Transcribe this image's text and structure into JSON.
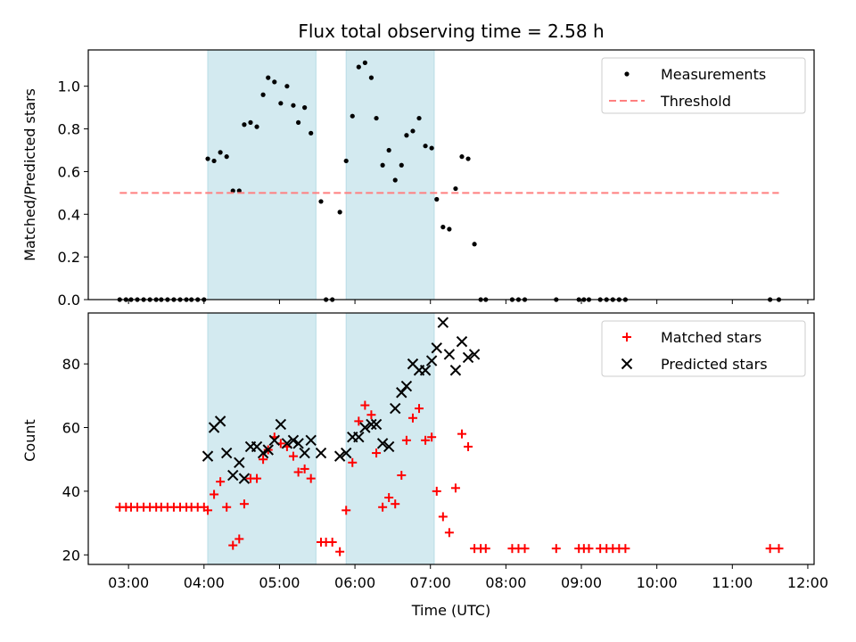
{
  "chart_data": [
    {
      "type": "scatter",
      "title": "Flux total observing time = 2.58 h",
      "xlabel": "",
      "ylabel": "Matched/Predicted stars",
      "xlim": [
        "02:28",
        "12:05"
      ],
      "ylim": [
        0,
        1.17
      ],
      "y_ticks": [
        0.0,
        0.2,
        0.4,
        0.6,
        0.8,
        1.0
      ],
      "y_tick_labels": [
        "0.0",
        "0.2",
        "0.4",
        "0.6",
        "0.8",
        "1.0"
      ],
      "shaded_intervals": [
        [
          "04:03",
          "05:29"
        ],
        [
          "05:53",
          "07:03"
        ]
      ],
      "shade_color": "#d3eaf0",
      "legend_position": "top-right",
      "series": [
        {
          "name": "Measurements",
          "marker": "dot",
          "color": "#000000",
          "points": [
            [
              "02:53",
              0.0
            ],
            [
              "02:58",
              0.0
            ],
            [
              "03:02",
              0.0
            ],
            [
              "03:07",
              0.0
            ],
            [
              "03:12",
              0.0
            ],
            [
              "03:17",
              0.0
            ],
            [
              "03:22",
              0.0
            ],
            [
              "03:26",
              0.0
            ],
            [
              "03:31",
              0.0
            ],
            [
              "03:36",
              0.0
            ],
            [
              "03:41",
              0.0
            ],
            [
              "03:46",
              0.0
            ],
            [
              "03:50",
              0.0
            ],
            [
              "03:55",
              0.0
            ],
            [
              "04:00",
              0.0
            ],
            [
              "04:03",
              0.66
            ],
            [
              "04:08",
              0.65
            ],
            [
              "04:13",
              0.69
            ],
            [
              "04:18",
              0.67
            ],
            [
              "04:23",
              0.51
            ],
            [
              "04:28",
              0.51
            ],
            [
              "04:32",
              0.82
            ],
            [
              "04:37",
              0.83
            ],
            [
              "04:42",
              0.81
            ],
            [
              "04:47",
              0.96
            ],
            [
              "04:51",
              1.04
            ],
            [
              "04:56",
              1.02
            ],
            [
              "05:01",
              0.92
            ],
            [
              "05:06",
              1.0
            ],
            [
              "05:11",
              0.91
            ],
            [
              "05:15",
              0.83
            ],
            [
              "05:20",
              0.9
            ],
            [
              "05:25",
              0.78
            ],
            [
              "05:33",
              0.46
            ],
            [
              "05:37",
              0.0
            ],
            [
              "05:42",
              0.0
            ],
            [
              "05:48",
              0.41
            ],
            [
              "05:53",
              0.65
            ],
            [
              "05:58",
              0.86
            ],
            [
              "06:03",
              1.09
            ],
            [
              "06:08",
              1.11
            ],
            [
              "06:13",
              1.04
            ],
            [
              "06:17",
              0.85
            ],
            [
              "06:22",
              0.63
            ],
            [
              "06:27",
              0.7
            ],
            [
              "06:32",
              0.56
            ],
            [
              "06:37",
              0.63
            ],
            [
              "06:41",
              0.77
            ],
            [
              "06:46",
              0.79
            ],
            [
              "06:51",
              0.85
            ],
            [
              "06:56",
              0.72
            ],
            [
              "07:01",
              0.71
            ],
            [
              "07:05",
              0.47
            ],
            [
              "07:10",
              0.34
            ],
            [
              "07:15",
              0.33
            ],
            [
              "07:20",
              0.52
            ],
            [
              "07:25",
              0.67
            ],
            [
              "07:30",
              0.66
            ],
            [
              "07:35",
              0.26
            ],
            [
              "07:40",
              0.0
            ],
            [
              "07:44",
              0.0
            ],
            [
              "08:05",
              0.0
            ],
            [
              "08:10",
              0.0
            ],
            [
              "08:15",
              0.0
            ],
            [
              "08:40",
              0.0
            ],
            [
              "08:58",
              0.0
            ],
            [
              "09:02",
              0.0
            ],
            [
              "09:06",
              0.0
            ],
            [
              "09:15",
              0.0
            ],
            [
              "09:20",
              0.0
            ],
            [
              "09:25",
              0.0
            ],
            [
              "09:30",
              0.0
            ],
            [
              "09:35",
              0.0
            ],
            [
              "11:30",
              0.0
            ],
            [
              "11:37",
              0.0
            ]
          ]
        },
        {
          "name": "Threshold",
          "line_style": "dashed",
          "color": "#ff7f7f",
          "x_range": [
            "02:53",
            "11:37"
          ],
          "value": 0.5
        }
      ]
    },
    {
      "type": "scatter",
      "title": "",
      "xlabel": "Time (UTC)",
      "ylabel": "Count",
      "xlim": [
        "02:28",
        "12:05"
      ],
      "ylim": [
        17,
        96
      ],
      "x_ticks": [
        "03:00",
        "04:00",
        "05:00",
        "06:00",
        "07:00",
        "08:00",
        "09:00",
        "10:00",
        "11:00",
        "12:00"
      ],
      "y_ticks": [
        20,
        40,
        60,
        80
      ],
      "y_tick_labels": [
        "20",
        "40",
        "60",
        "80"
      ],
      "shaded_intervals": [
        [
          "04:03",
          "05:29"
        ],
        [
          "05:53",
          "07:03"
        ]
      ],
      "shade_color": "#d3eaf0",
      "legend_position": "top-right",
      "series": [
        {
          "name": "Matched stars",
          "marker": "plus",
          "color": "#ff0000",
          "points": [
            [
              "02:53",
              35
            ],
            [
              "02:58",
              35
            ],
            [
              "03:02",
              35
            ],
            [
              "03:07",
              35
            ],
            [
              "03:12",
              35
            ],
            [
              "03:17",
              35
            ],
            [
              "03:22",
              35
            ],
            [
              "03:26",
              35
            ],
            [
              "03:31",
              35
            ],
            [
              "03:36",
              35
            ],
            [
              "03:41",
              35
            ],
            [
              "03:46",
              35
            ],
            [
              "03:50",
              35
            ],
            [
              "03:55",
              35
            ],
            [
              "04:00",
              35
            ],
            [
              "04:03",
              34
            ],
            [
              "04:08",
              39
            ],
            [
              "04:13",
              43
            ],
            [
              "04:18",
              35
            ],
            [
              "04:23",
              23
            ],
            [
              "04:28",
              25
            ],
            [
              "04:32",
              36
            ],
            [
              "04:37",
              44
            ],
            [
              "04:42",
              44
            ],
            [
              "04:47",
              50
            ],
            [
              "04:51",
              53
            ],
            [
              "04:56",
              57
            ],
            [
              "05:01",
              55
            ],
            [
              "05:06",
              54
            ],
            [
              "05:11",
              51
            ],
            [
              "05:15",
              46
            ],
            [
              "05:20",
              47
            ],
            [
              "05:25",
              44
            ],
            [
              "05:33",
              24
            ],
            [
              "05:37",
              24
            ],
            [
              "05:42",
              24
            ],
            [
              "05:48",
              21
            ],
            [
              "05:53",
              34
            ],
            [
              "05:58",
              49
            ],
            [
              "06:03",
              62
            ],
            [
              "06:08",
              67
            ],
            [
              "06:13",
              64
            ],
            [
              "06:17",
              52
            ],
            [
              "06:22",
              35
            ],
            [
              "06:27",
              38
            ],
            [
              "06:32",
              36
            ],
            [
              "06:37",
              45
            ],
            [
              "06:41",
              56
            ],
            [
              "06:46",
              63
            ],
            [
              "06:51",
              66
            ],
            [
              "06:56",
              56
            ],
            [
              "07:01",
              57
            ],
            [
              "07:05",
              40
            ],
            [
              "07:10",
              32
            ],
            [
              "07:15",
              27
            ],
            [
              "07:20",
              41
            ],
            [
              "07:25",
              58
            ],
            [
              "07:30",
              54
            ],
            [
              "07:35",
              22
            ],
            [
              "07:40",
              22
            ],
            [
              "07:44",
              22
            ],
            [
              "08:05",
              22
            ],
            [
              "08:10",
              22
            ],
            [
              "08:15",
              22
            ],
            [
              "08:40",
              22
            ],
            [
              "08:58",
              22
            ],
            [
              "09:02",
              22
            ],
            [
              "09:06",
              22
            ],
            [
              "09:15",
              22
            ],
            [
              "09:20",
              22
            ],
            [
              "09:25",
              22
            ],
            [
              "09:30",
              22
            ],
            [
              "09:35",
              22
            ],
            [
              "11:30",
              22
            ],
            [
              "11:37",
              22
            ]
          ]
        },
        {
          "name": "Predicted stars",
          "marker": "x",
          "color": "#000000",
          "points": [
            [
              "04:03",
              51
            ],
            [
              "04:08",
              60
            ],
            [
              "04:13",
              62
            ],
            [
              "04:18",
              52
            ],
            [
              "04:23",
              45
            ],
            [
              "04:28",
              49
            ],
            [
              "04:32",
              44
            ],
            [
              "04:37",
              54
            ],
            [
              "04:42",
              54
            ],
            [
              "04:47",
              52
            ],
            [
              "04:51",
              53
            ],
            [
              "04:56",
              56
            ],
            [
              "05:01",
              61
            ],
            [
              "05:06",
              55
            ],
            [
              "05:11",
              56
            ],
            [
              "05:15",
              55
            ],
            [
              "05:20",
              52
            ],
            [
              "05:25",
              56
            ],
            [
              "05:33",
              52
            ],
            [
              "05:48",
              51
            ],
            [
              "05:53",
              52
            ],
            [
              "05:58",
              57
            ],
            [
              "06:03",
              57
            ],
            [
              "06:08",
              60
            ],
            [
              "06:13",
              61
            ],
            [
              "06:17",
              61
            ],
            [
              "06:22",
              55
            ],
            [
              "06:27",
              54
            ],
            [
              "06:32",
              66
            ],
            [
              "06:37",
              71
            ],
            [
              "06:41",
              73
            ],
            [
              "06:46",
              80
            ],
            [
              "06:51",
              78
            ],
            [
              "06:56",
              78
            ],
            [
              "07:01",
              81
            ],
            [
              "07:05",
              85
            ],
            [
              "07:10",
              93
            ],
            [
              "07:15",
              83
            ],
            [
              "07:20",
              78
            ],
            [
              "07:25",
              87
            ],
            [
              "07:30",
              82
            ],
            [
              "07:35",
              83
            ]
          ]
        }
      ]
    }
  ]
}
